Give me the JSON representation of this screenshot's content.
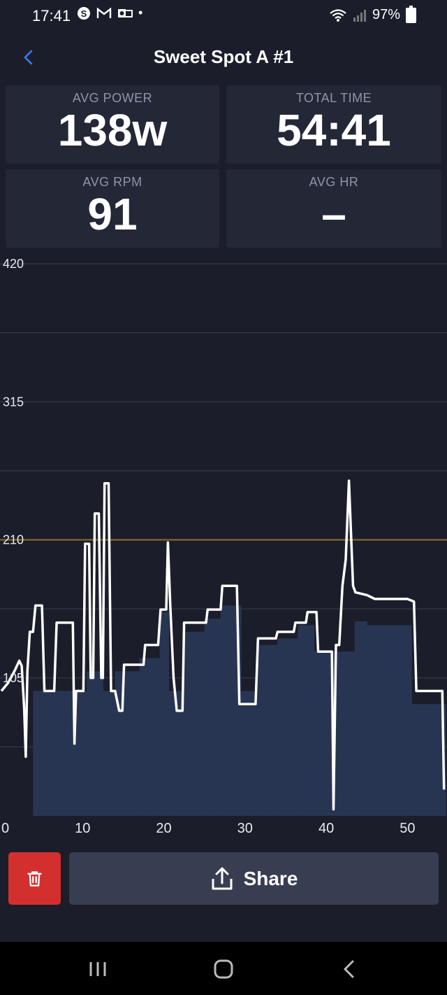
{
  "status_bar": {
    "time": "17:41",
    "notification_icons": [
      "strava-icon",
      "gmail-icon",
      "outlook-icon"
    ],
    "dot": "•",
    "battery": "97%"
  },
  "header": {
    "title": "Sweet Spot A #1"
  },
  "stats": [
    {
      "label": "AVG POWER",
      "value": "138w"
    },
    {
      "label": "TOTAL TIME",
      "value": "54:41"
    },
    {
      "label": "AVG RPM",
      "value": "91"
    },
    {
      "label": "AVG HR",
      "value": "–"
    }
  ],
  "chart_data": {
    "type": "line",
    "ylim": [
      0,
      420
    ],
    "xlim": [
      0,
      54.7
    ],
    "y_ticks": [
      "420",
      "315",
      "210",
      "105"
    ],
    "x_ticks": [
      "0",
      "10",
      "20",
      "30",
      "40",
      "50"
    ],
    "ftp_line": 210,
    "colors": {
      "line": "#ffffff",
      "target_fill": "#283552",
      "ftp": "#8a6d2a",
      "grid": "#3a3e4e"
    },
    "target_blocks": [
      {
        "x0": 0,
        "x1": 3.9,
        "y": 0
      },
      {
        "x0": 3.9,
        "x1": 10.5,
        "y": 95
      },
      {
        "x0": 10.5,
        "x1": 12.5,
        "y": 110
      },
      {
        "x0": 12.5,
        "x1": 14,
        "y": 95
      },
      {
        "x0": 14,
        "x1": 17,
        "y": 110
      },
      {
        "x0": 17,
        "x1": 19.5,
        "y": 120
      },
      {
        "x0": 19.5,
        "x1": 20.6,
        "y": 155
      },
      {
        "x0": 20.6,
        "x1": 22.5,
        "y": 95
      },
      {
        "x0": 22.5,
        "x1": 25,
        "y": 140
      },
      {
        "x0": 25,
        "x1": 27,
        "y": 150
      },
      {
        "x0": 27,
        "x1": 29.5,
        "y": 160
      },
      {
        "x0": 29.5,
        "x1": 31.5,
        "y": 95
      },
      {
        "x0": 31.5,
        "x1": 34,
        "y": 130
      },
      {
        "x0": 34,
        "x1": 36.5,
        "y": 135
      },
      {
        "x0": 36.5,
        "x1": 38.5,
        "y": 145
      },
      {
        "x0": 38.5,
        "x1": 41,
        "y": 125
      },
      {
        "x0": 41,
        "x1": 43.5,
        "y": 125
      },
      {
        "x0": 43.5,
        "x1": 45,
        "y": 148
      },
      {
        "x0": 45,
        "x1": 50.5,
        "y": 145
      },
      {
        "x0": 50.5,
        "x1": 54.7,
        "y": 85
      }
    ],
    "series": [
      {
        "name": "Power",
        "points": [
          [
            0,
            95
          ],
          [
            0.8,
            101
          ],
          [
            1.6,
            110
          ],
          [
            2.2,
            118
          ],
          [
            2.5,
            114
          ],
          [
            2.8,
            82
          ],
          [
            3.0,
            45
          ],
          [
            3.2,
            110
          ],
          [
            3.5,
            140
          ],
          [
            3.9,
            140
          ],
          [
            4.2,
            160
          ],
          [
            5.0,
            160
          ],
          [
            5.3,
            95
          ],
          [
            6.5,
            95
          ],
          [
            6.8,
            147
          ],
          [
            8.8,
            147
          ],
          [
            9.0,
            55
          ],
          [
            9.2,
            95
          ],
          [
            10.1,
            95
          ],
          [
            10.3,
            207
          ],
          [
            10.8,
            207
          ],
          [
            11.0,
            105
          ],
          [
            11.3,
            105
          ],
          [
            11.5,
            230
          ],
          [
            12.0,
            230
          ],
          [
            12.3,
            105
          ],
          [
            12.5,
            105
          ],
          [
            12.7,
            253
          ],
          [
            13.2,
            253
          ],
          [
            13.5,
            95
          ],
          [
            14.0,
            95
          ],
          [
            14.5,
            80
          ],
          [
            14.9,
            80
          ],
          [
            15.1,
            115
          ],
          [
            17.5,
            115
          ],
          [
            17.7,
            130
          ],
          [
            19.3,
            130
          ],
          [
            19.6,
            157
          ],
          [
            20.3,
            157
          ],
          [
            20.5,
            208
          ],
          [
            20.8,
            160
          ],
          [
            21.2,
            105
          ],
          [
            21.6,
            80
          ],
          [
            22.3,
            80
          ],
          [
            22.5,
            147
          ],
          [
            25.2,
            147
          ],
          [
            25.4,
            157
          ],
          [
            27.0,
            157
          ],
          [
            27.2,
            175
          ],
          [
            29.0,
            175
          ],
          [
            29.3,
            85
          ],
          [
            31.3,
            85
          ],
          [
            31.6,
            135
          ],
          [
            33.8,
            135
          ],
          [
            34.0,
            140
          ],
          [
            36.0,
            140
          ],
          [
            36.2,
            147
          ],
          [
            37.5,
            147
          ],
          [
            37.7,
            155
          ],
          [
            38.8,
            155
          ],
          [
            39.0,
            125
          ],
          [
            40.7,
            125
          ],
          [
            40.9,
            5
          ],
          [
            41.2,
            130
          ],
          [
            41.6,
            130
          ],
          [
            42.0,
            175
          ],
          [
            42.4,
            195
          ],
          [
            42.8,
            255
          ],
          [
            43.3,
            175
          ],
          [
            43.6,
            170
          ],
          [
            45.0,
            168
          ],
          [
            46.0,
            165
          ],
          [
            50.0,
            165
          ],
          [
            50.8,
            163
          ],
          [
            51.1,
            95
          ],
          [
            54.0,
            95
          ],
          [
            54.3,
            95
          ],
          [
            54.5,
            20
          ]
        ]
      }
    ]
  },
  "actions": {
    "delete_icon": "trash-icon",
    "share_icon": "share-icon",
    "share_label": "Share"
  },
  "navbar": {
    "items": [
      "recent-apps-icon",
      "home-icon",
      "back-icon"
    ]
  }
}
